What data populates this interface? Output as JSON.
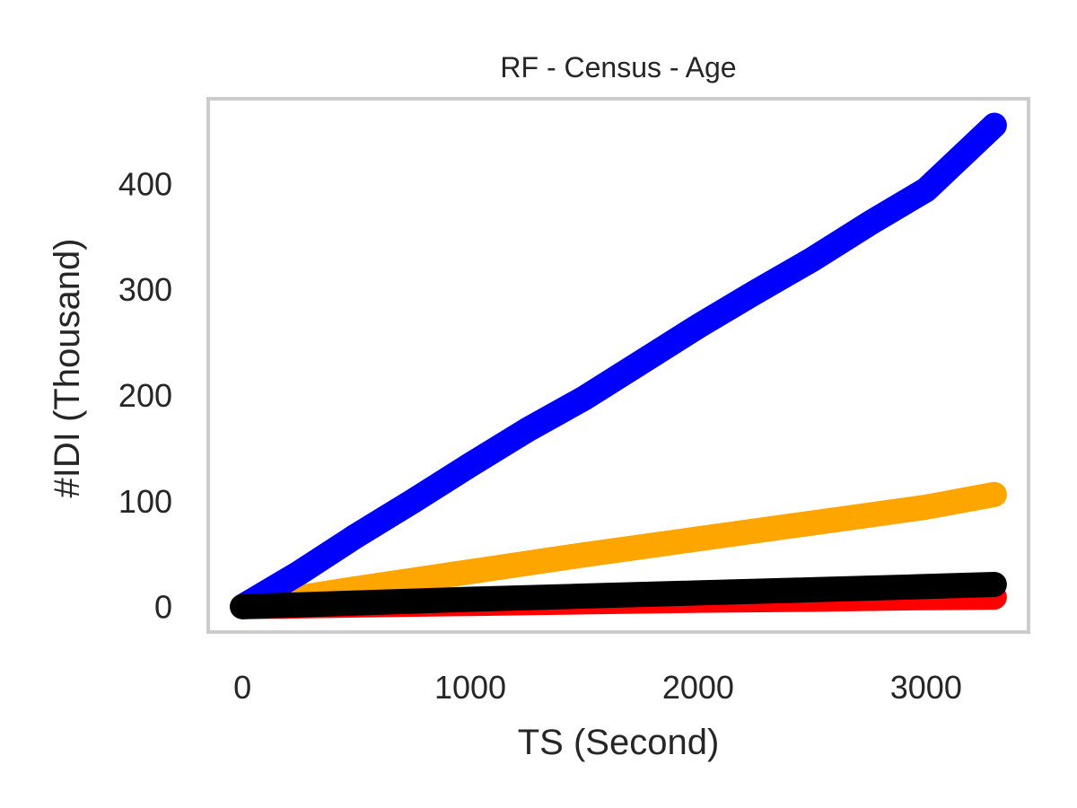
{
  "chart_data": {
    "type": "line",
    "title": "RF - Census - Age",
    "xlabel": "TS (Second)",
    "ylabel": "#IDI (Thousand)",
    "xlim": [
      -150,
      3450
    ],
    "ylim": [
      -24,
      480
    ],
    "xticks": [
      0,
      1000,
      2000,
      3000
    ],
    "yticks": [
      0,
      100,
      200,
      300,
      400
    ],
    "grid": false,
    "series": [
      {
        "color": "#ff0000",
        "x": [
          0,
          500,
          1000,
          1500,
          2000,
          2500,
          3000,
          3300
        ],
        "y": [
          0,
          1.5,
          3,
          4.5,
          6,
          7,
          8.5,
          9
        ]
      },
      {
        "color": "#ffa500",
        "x": [
          0,
          500,
          1000,
          1500,
          2000,
          2500,
          3000,
          3300
        ],
        "y": [
          0,
          17,
          33,
          49,
          64,
          79,
          94,
          106
        ]
      },
      {
        "color": "#0000ff",
        "x": [
          0,
          250,
          500,
          750,
          1000,
          1250,
          1500,
          1750,
          2000,
          2250,
          2500,
          2750,
          3000,
          3300
        ],
        "y": [
          0,
          32,
          67,
          100,
          134,
          167,
          197,
          231,
          265,
          297,
          328,
          362,
          394,
          455
        ]
      },
      {
        "color": "#000000",
        "x": [
          0,
          500,
          1000,
          1500,
          2000,
          2500,
          3000,
          3300
        ],
        "y": [
          0,
          3.5,
          7,
          10,
          13,
          16,
          19,
          21
        ]
      }
    ]
  }
}
